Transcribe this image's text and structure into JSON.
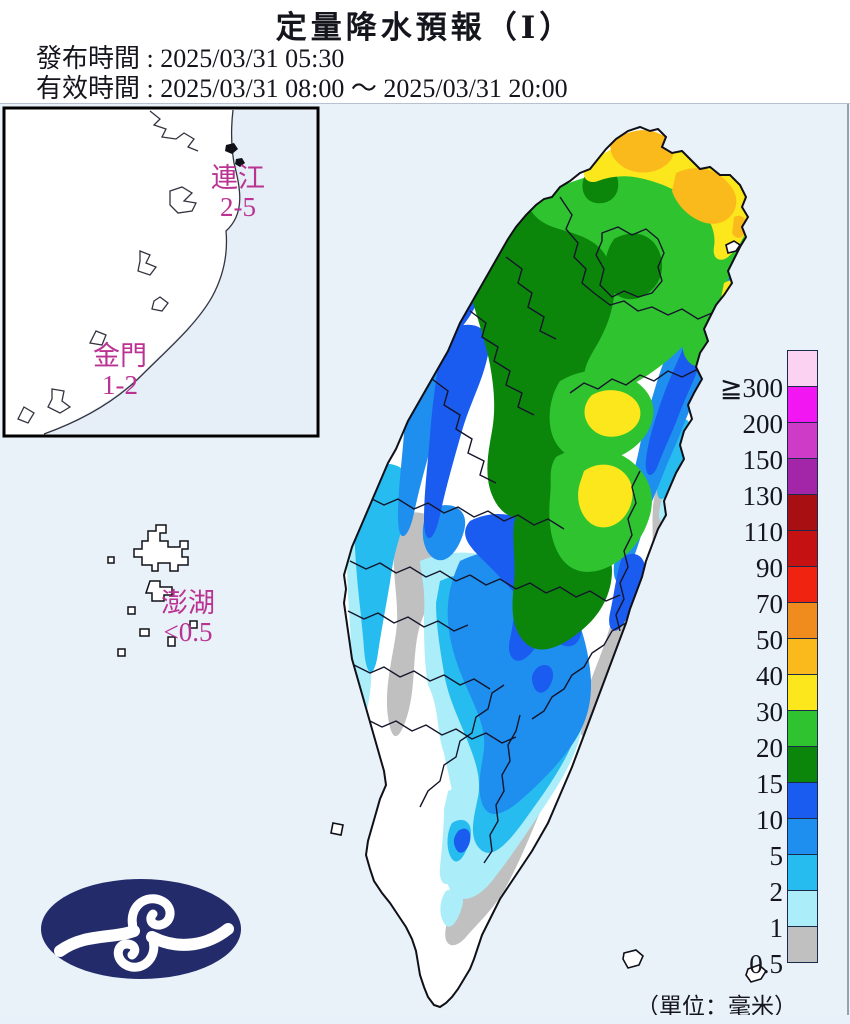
{
  "title": "定量降水預報（Ⅰ）",
  "header": {
    "issued_label": "發布時間 :",
    "issued_time": "2025/03/31 05:30",
    "valid_label": "有效時間 :",
    "valid_time": "2025/03/31 08:00 ～ 2025/03/31 20:00"
  },
  "regions": {
    "lienchiang": {
      "name": "連江",
      "range": "2-5"
    },
    "kinmen": {
      "name": "金門",
      "range": "1-2"
    },
    "penghu": {
      "name": "澎湖",
      "range": "<0.5"
    }
  },
  "legend": {
    "unit": "（單位：毫米）",
    "levels": [
      {
        "label": "≧300",
        "color": "#FBD2F2"
      },
      {
        "label": "200",
        "color": "#F216F2"
      },
      {
        "label": "150",
        "color": "#CE3BC6"
      },
      {
        "label": "130",
        "color": "#A426A8"
      },
      {
        "label": "110",
        "color": "#A80F12"
      },
      {
        "label": "90",
        "color": "#C51112"
      },
      {
        "label": "70",
        "color": "#EF2310"
      },
      {
        "label": "50",
        "color": "#F08C1E"
      },
      {
        "label": "40",
        "color": "#FBBA1C"
      },
      {
        "label": "30",
        "color": "#FCE71C"
      },
      {
        "label": "20",
        "color": "#2FC42F"
      },
      {
        "label": "15",
        "color": "#0B860B"
      },
      {
        "label": "10",
        "color": "#1A5CEF"
      },
      {
        "label": "5",
        "color": "#1E8EEF"
      },
      {
        "label": "2",
        "color": "#27BCEF"
      },
      {
        "label": "1",
        "color": "#ABEDF8"
      },
      {
        "label": "0.5",
        "color": "#C0C0C0"
      }
    ]
  },
  "colors": {
    "sea": "#E9F1F9",
    "inset_sea": "#E6EFF8",
    "label_magenta": "#BA3392",
    "logo_navy": "#232B6B",
    "amb40": "#FBBA1C",
    "yel30": "#FCE71C",
    "grn20": "#2FC42F",
    "dgn15": "#0B860B",
    "roy10": "#1A5CEF",
    "blu5": "#1E8EEF",
    "sky2": "#27BCEF",
    "cyn1": "#ABEDF8",
    "gry05": "#C0C0C0"
  },
  "logo": {
    "name": "central-weather-administration-logo"
  }
}
